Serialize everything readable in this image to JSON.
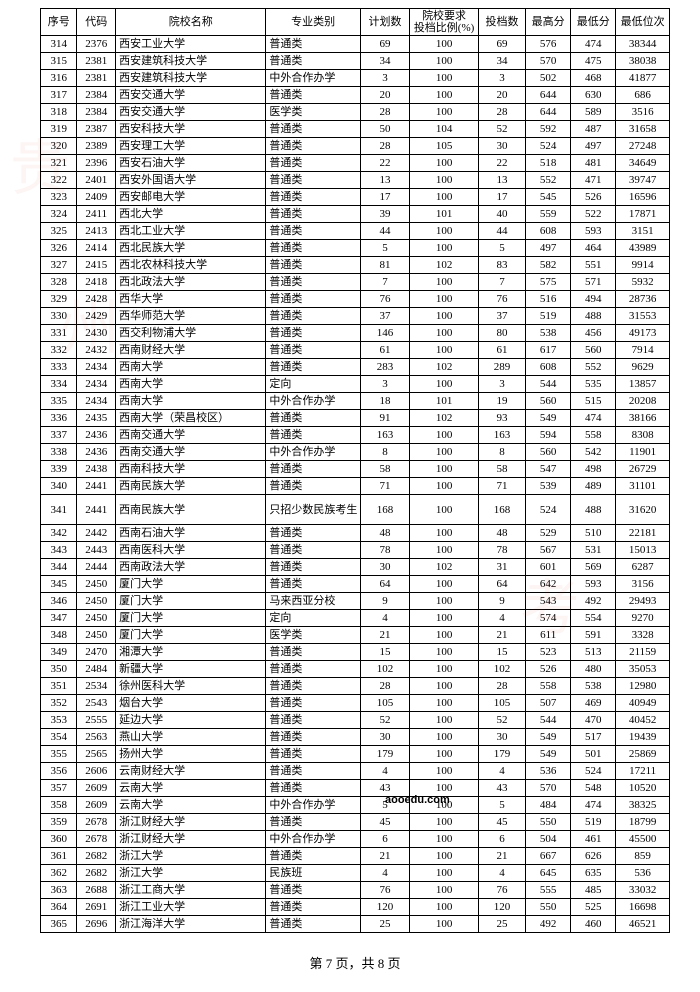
{
  "columns": [
    "序号",
    "代码",
    "院校名称",
    "专业类别",
    "计划数",
    "院校要求\n投档比例(%)",
    "投档数",
    "最高分",
    "最低分",
    "最低位次"
  ],
  "col_classes": [
    "col-seq",
    "col-code",
    "col-name",
    "col-cat",
    "col-plan",
    "col-ratio",
    "col-td",
    "col-hi",
    "col-lo",
    "col-rank"
  ],
  "col_cell_classes": [
    "",
    "",
    "name",
    "cat",
    "",
    "",
    "",
    "",
    "",
    ""
  ],
  "footer": "第 7 页，共 8 页",
  "watermark_url": "aooedu.com",
  "rows": [
    [
      "314",
      "2376",
      "西安工业大学",
      "普通类",
      "69",
      "100",
      "69",
      "576",
      "474",
      "38344"
    ],
    [
      "315",
      "2381",
      "西安建筑科技大学",
      "普通类",
      "34",
      "100",
      "34",
      "570",
      "475",
      "38038"
    ],
    [
      "316",
      "2381",
      "西安建筑科技大学",
      "中外合作办学",
      "3",
      "100",
      "3",
      "502",
      "468",
      "41877"
    ],
    [
      "317",
      "2384",
      "西安交通大学",
      "普通类",
      "20",
      "100",
      "20",
      "644",
      "630",
      "686"
    ],
    [
      "318",
      "2384",
      "西安交通大学",
      "医学类",
      "28",
      "100",
      "28",
      "644",
      "589",
      "3516"
    ],
    [
      "319",
      "2387",
      "西安科技大学",
      "普通类",
      "50",
      "104",
      "52",
      "592",
      "487",
      "31658"
    ],
    [
      "320",
      "2389",
      "西安理工大学",
      "普通类",
      "28",
      "105",
      "30",
      "524",
      "497",
      "27248"
    ],
    [
      "321",
      "2396",
      "西安石油大学",
      "普通类",
      "22",
      "100",
      "22",
      "518",
      "481",
      "34649"
    ],
    [
      "322",
      "2401",
      "西安外国语大学",
      "普通类",
      "13",
      "100",
      "13",
      "552",
      "471",
      "39747"
    ],
    [
      "323",
      "2409",
      "西安邮电大学",
      "普通类",
      "17",
      "100",
      "17",
      "545",
      "526",
      "16596"
    ],
    [
      "324",
      "2411",
      "西北大学",
      "普通类",
      "39",
      "101",
      "40",
      "559",
      "522",
      "17871"
    ],
    [
      "325",
      "2413",
      "西北工业大学",
      "普通类",
      "44",
      "100",
      "44",
      "608",
      "593",
      "3151"
    ],
    [
      "326",
      "2414",
      "西北民族大学",
      "普通类",
      "5",
      "100",
      "5",
      "497",
      "464",
      "43989"
    ],
    [
      "327",
      "2415",
      "西北农林科技大学",
      "普通类",
      "81",
      "102",
      "83",
      "582",
      "551",
      "9914"
    ],
    [
      "328",
      "2418",
      "西北政法大学",
      "普通类",
      "7",
      "100",
      "7",
      "575",
      "571",
      "5932"
    ],
    [
      "329",
      "2428",
      "西华大学",
      "普通类",
      "76",
      "100",
      "76",
      "516",
      "494",
      "28736"
    ],
    [
      "330",
      "2429",
      "西华师范大学",
      "普通类",
      "37",
      "100",
      "37",
      "519",
      "488",
      "31553"
    ],
    [
      "331",
      "2430",
      "西交利物浦大学",
      "普通类",
      "146",
      "100",
      "80",
      "538",
      "456",
      "49173"
    ],
    [
      "332",
      "2432",
      "西南财经大学",
      "普通类",
      "61",
      "100",
      "61",
      "617",
      "560",
      "7914"
    ],
    [
      "333",
      "2434",
      "西南大学",
      "普通类",
      "283",
      "102",
      "289",
      "608",
      "552",
      "9629"
    ],
    [
      "334",
      "2434",
      "西南大学",
      "定向",
      "3",
      "100",
      "3",
      "544",
      "535",
      "13857"
    ],
    [
      "335",
      "2434",
      "西南大学",
      "中外合作办学",
      "18",
      "101",
      "19",
      "560",
      "515",
      "20208"
    ],
    [
      "336",
      "2435",
      "西南大学（荣昌校区）",
      "普通类",
      "91",
      "102",
      "93",
      "549",
      "474",
      "38166"
    ],
    [
      "337",
      "2436",
      "西南交通大学",
      "普通类",
      "163",
      "100",
      "163",
      "594",
      "558",
      "8308"
    ],
    [
      "338",
      "2436",
      "西南交通大学",
      "中外合作办学",
      "8",
      "100",
      "8",
      "560",
      "542",
      "11901"
    ],
    [
      "339",
      "2438",
      "西南科技大学",
      "普通类",
      "58",
      "100",
      "58",
      "547",
      "498",
      "26729"
    ],
    [
      "340",
      "2441",
      "西南民族大学",
      "普通类",
      "71",
      "100",
      "71",
      "539",
      "489",
      "31101"
    ],
    [
      "341",
      "2441",
      "西南民族大学",
      "只招少数民族考生",
      "168",
      "100",
      "168",
      "524",
      "488",
      "31620"
    ],
    [
      "342",
      "2442",
      "西南石油大学",
      "普通类",
      "48",
      "100",
      "48",
      "529",
      "510",
      "22181"
    ],
    [
      "343",
      "2443",
      "西南医科大学",
      "普通类",
      "78",
      "100",
      "78",
      "567",
      "531",
      "15013"
    ],
    [
      "344",
      "2444",
      "西南政法大学",
      "普通类",
      "30",
      "102",
      "31",
      "601",
      "569",
      "6287"
    ],
    [
      "345",
      "2450",
      "厦门大学",
      "普通类",
      "64",
      "100",
      "64",
      "642",
      "593",
      "3156"
    ],
    [
      "346",
      "2450",
      "厦门大学",
      "马来西亚分校",
      "9",
      "100",
      "9",
      "543",
      "492",
      "29493"
    ],
    [
      "347",
      "2450",
      "厦门大学",
      "定向",
      "4",
      "100",
      "4",
      "574",
      "554",
      "9270"
    ],
    [
      "348",
      "2450",
      "厦门大学",
      "医学类",
      "21",
      "100",
      "21",
      "611",
      "591",
      "3328"
    ],
    [
      "349",
      "2470",
      "湘潭大学",
      "普通类",
      "15",
      "100",
      "15",
      "523",
      "513",
      "21159"
    ],
    [
      "350",
      "2484",
      "新疆大学",
      "普通类",
      "102",
      "100",
      "102",
      "526",
      "480",
      "35053"
    ],
    [
      "351",
      "2534",
      "徐州医科大学",
      "普通类",
      "28",
      "100",
      "28",
      "558",
      "538",
      "12980"
    ],
    [
      "352",
      "2543",
      "烟台大学",
      "普通类",
      "105",
      "100",
      "105",
      "507",
      "469",
      "40949"
    ],
    [
      "353",
      "2555",
      "延边大学",
      "普通类",
      "52",
      "100",
      "52",
      "544",
      "470",
      "40452"
    ],
    [
      "354",
      "2563",
      "燕山大学",
      "普通类",
      "30",
      "100",
      "30",
      "549",
      "517",
      "19439"
    ],
    [
      "355",
      "2565",
      "扬州大学",
      "普通类",
      "179",
      "100",
      "179",
      "549",
      "501",
      "25869"
    ],
    [
      "356",
      "2606",
      "云南财经大学",
      "普通类",
      "4",
      "100",
      "4",
      "536",
      "524",
      "17211"
    ],
    [
      "357",
      "2609",
      "云南大学",
      "普通类",
      "43",
      "100",
      "43",
      "570",
      "548",
      "10520"
    ],
    [
      "358",
      "2609",
      "云南大学",
      "中外合作办学",
      "5",
      "100",
      "5",
      "484",
      "474",
      "38325"
    ],
    [
      "359",
      "2678",
      "浙江财经大学",
      "普通类",
      "45",
      "100",
      "45",
      "550",
      "519",
      "18799"
    ],
    [
      "360",
      "2678",
      "浙江财经大学",
      "中外合作办学",
      "6",
      "100",
      "6",
      "504",
      "461",
      "45500"
    ],
    [
      "361",
      "2682",
      "浙江大学",
      "普通类",
      "21",
      "100",
      "21",
      "667",
      "626",
      "859"
    ],
    [
      "362",
      "2682",
      "浙江大学",
      "民族班",
      "4",
      "100",
      "4",
      "645",
      "635",
      "536"
    ],
    [
      "363",
      "2688",
      "浙江工商大学",
      "普通类",
      "76",
      "100",
      "76",
      "555",
      "485",
      "33032"
    ],
    [
      "364",
      "2691",
      "浙江工业大学",
      "普通类",
      "120",
      "100",
      "120",
      "550",
      "525",
      "16698"
    ],
    [
      "365",
      "2696",
      "浙江海洋大学",
      "普通类",
      "25",
      "100",
      "25",
      "492",
      "460",
      "46521"
    ]
  ],
  "tall_rows": [
    27
  ]
}
